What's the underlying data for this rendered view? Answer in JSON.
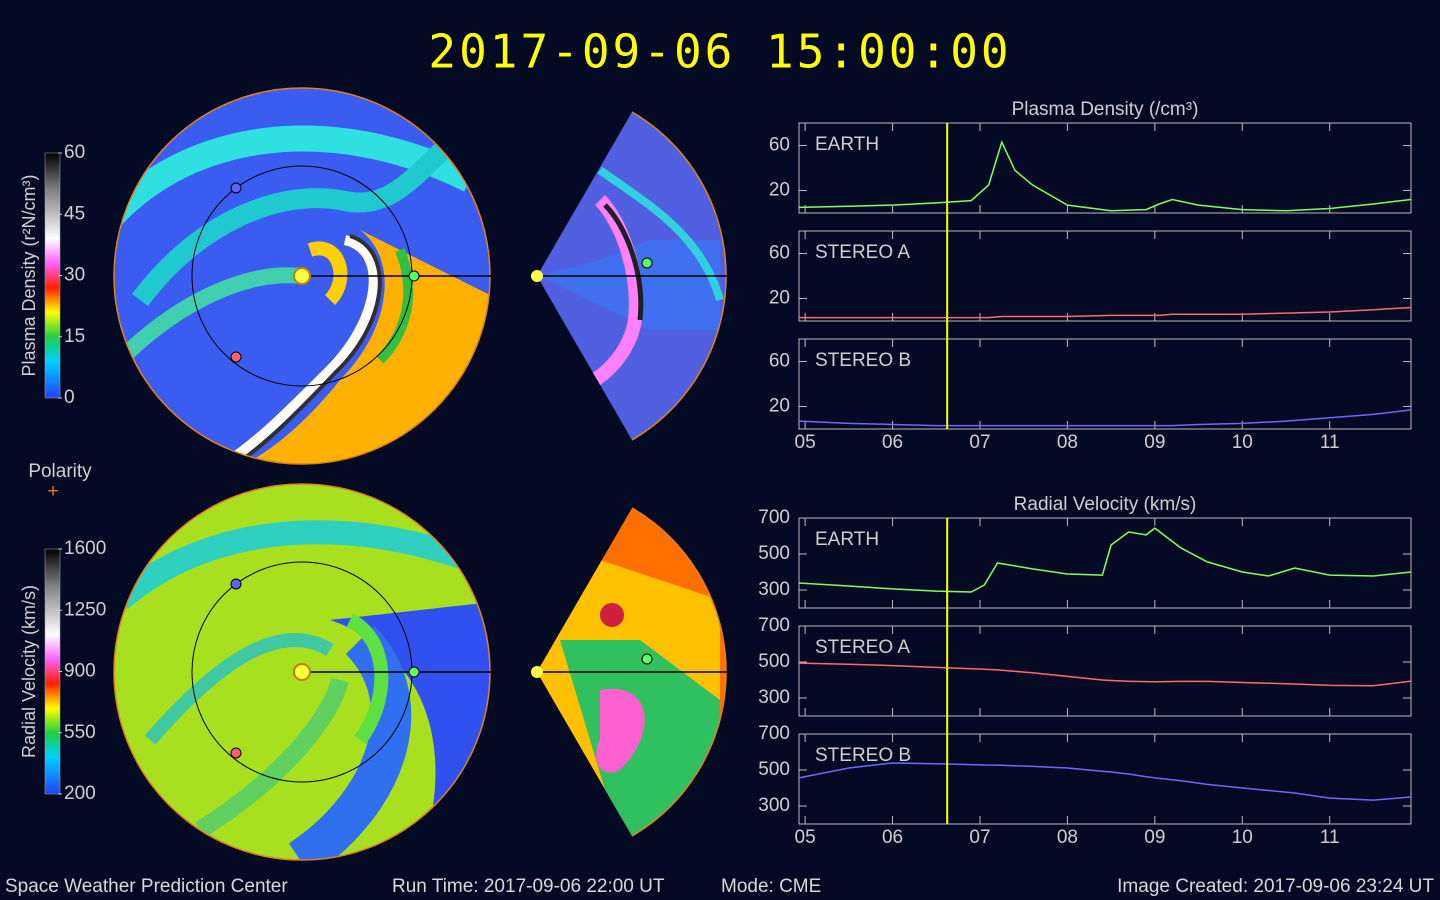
{
  "header": {
    "title": "2017-09-06 15:00:00"
  },
  "maps": [
    {
      "label": "Plasma Density (r²N/cm³)",
      "lim": [
        0,
        60
      ],
      "ticks": [
        0,
        15,
        30,
        45,
        60
      ]
    },
    {
      "label": "Radial Velocity (km/s)",
      "lim": [
        200,
        1600
      ],
      "ticks": [
        200,
        550,
        900,
        1250,
        1600
      ]
    }
  ],
  "polarity": {
    "label": "Polarity",
    "symbol": "+"
  },
  "chart_data": [
    {
      "type": "line",
      "title": "Plasma Density (/cm³)",
      "x": [
        4.93,
        5.5,
        6,
        6.5,
        6.9,
        7.1,
        7.25,
        7.4,
        7.6,
        8,
        8.5,
        8.9,
        9.05,
        9.2,
        9.5,
        10,
        10.5,
        11,
        11.5,
        11.93
      ],
      "xlim": [
        4.93,
        11.93
      ],
      "xticks": [
        {
          "value": 5,
          "label": "05"
        },
        {
          "value": 6,
          "label": "06"
        },
        {
          "value": 7,
          "label": "07"
        },
        {
          "value": 8,
          "label": "08"
        },
        {
          "value": 9,
          "label": "09"
        },
        {
          "value": 10,
          "label": "10"
        },
        {
          "value": 11,
          "label": "11"
        }
      ],
      "ylim": [
        0,
        80
      ],
      "yticks": [
        20,
        60
      ],
      "marker_x": 6.625,
      "marker_color": "#ffff00",
      "series": [
        {
          "name": "EARTH",
          "color": "#80ff60",
          "values": [
            5,
            6,
            7,
            9,
            11,
            25,
            63,
            38,
            25,
            7,
            2,
            3,
            8,
            12,
            7,
            3,
            2,
            4,
            8,
            12
          ]
        },
        {
          "name": "STEREO A",
          "color": "#ff6a6a",
          "values": [
            3,
            3,
            3,
            3,
            3,
            3,
            4,
            4,
            4,
            4,
            5,
            5,
            5,
            6,
            6,
            6,
            7,
            8,
            10,
            12
          ]
        },
        {
          "name": "STEREO B",
          "color": "#6a6aff",
          "values": [
            7,
            5,
            4,
            3,
            3,
            3,
            3,
            3,
            3,
            3,
            3,
            3,
            3,
            3,
            4,
            5,
            7,
            10,
            13,
            17
          ]
        }
      ]
    },
    {
      "type": "line",
      "title": "Radial Velocity (km/s)",
      "x": [
        4.93,
        5.5,
        6,
        6.5,
        6.9,
        7.05,
        7.2,
        7.6,
        8,
        8.4,
        8.5,
        8.7,
        8.9,
        9.0,
        9.3,
        9.6,
        10,
        10.3,
        10.6,
        11,
        11.5,
        11.93
      ],
      "xlim": [
        4.93,
        11.93
      ],
      "xticks": [
        {
          "value": 5,
          "label": "05"
        },
        {
          "value": 6,
          "label": "06"
        },
        {
          "value": 7,
          "label": "07"
        },
        {
          "value": 8,
          "label": "08"
        },
        {
          "value": 9,
          "label": "09"
        },
        {
          "value": 10,
          "label": "10"
        },
        {
          "value": 11,
          "label": "11"
        }
      ],
      "ylim": [
        200,
        700
      ],
      "yticks": [
        300,
        500,
        700
      ],
      "marker_x": 6.625,
      "marker_color": "#ffff00",
      "series": [
        {
          "name": "EARTH",
          "color": "#80ff60",
          "values": [
            339,
            322,
            306,
            294,
            289,
            328,
            450,
            417,
            389,
            383,
            550,
            622,
            606,
            644,
            533,
            456,
            400,
            378,
            422,
            383,
            378,
            400
          ]
        },
        {
          "name": "STEREO A",
          "color": "#ff6a6a",
          "values": [
            494,
            488,
            480,
            470,
            463,
            460,
            456,
            440,
            420,
            400,
            397,
            393,
            391,
            390,
            392,
            392,
            386,
            382,
            378,
            370,
            368,
            394
          ]
        },
        {
          "name": "STEREO B",
          "color": "#6a6aff",
          "values": [
            456,
            511,
            539,
            535,
            530,
            528,
            527,
            520,
            511,
            493,
            489,
            478,
            463,
            456,
            440,
            420,
            400,
            386,
            372,
            344,
            333,
            350
          ]
        }
      ]
    }
  ],
  "footer": {
    "org": "Space Weather Prediction Center",
    "run_time": "Run Time: 2017-09-06 22:00 UT",
    "mode": "Mode: CME",
    "created": "Image Created: 2017-09-06 23:24 UT"
  }
}
